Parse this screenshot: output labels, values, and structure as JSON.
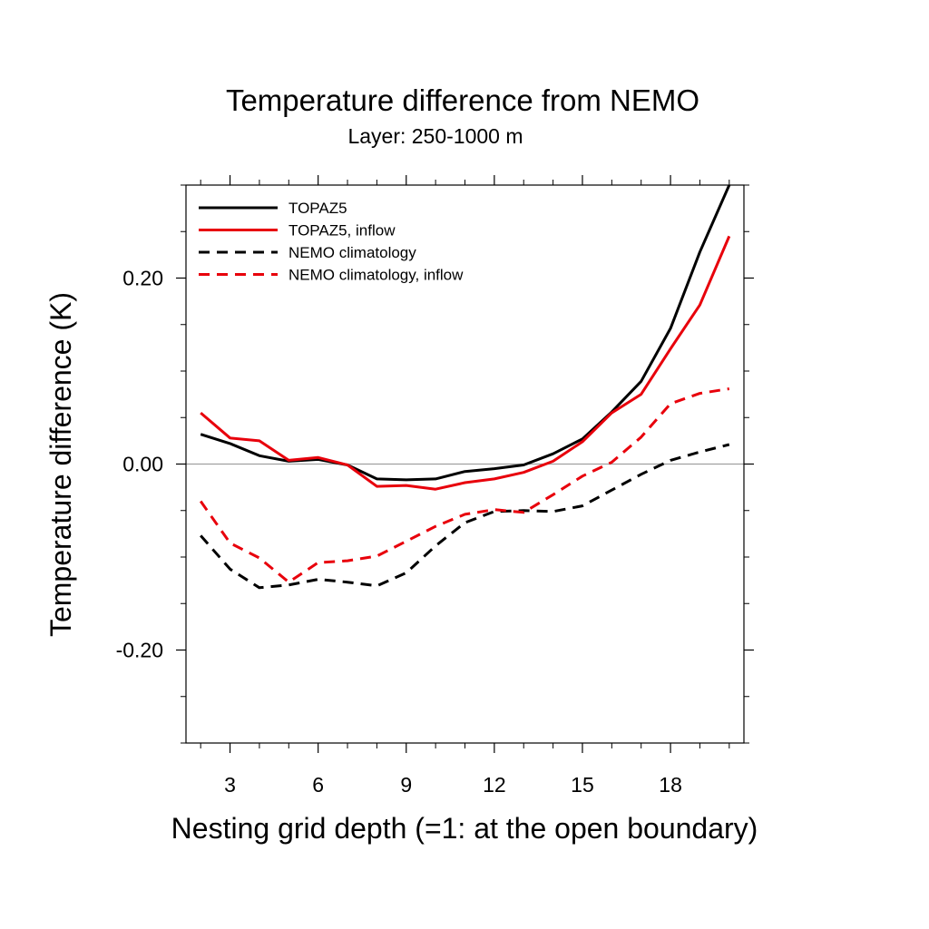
{
  "chart_data": {
    "type": "line",
    "title": "Temperature difference from NEMO",
    "subtitle": "Layer: 250-1000 m",
    "xlabel": "Nesting grid depth (=1: at the open boundary)",
    "ylabel": "Temperature difference (K)",
    "xlim": [
      1.5,
      20.5
    ],
    "ylim": [
      -0.3,
      0.3
    ],
    "x_major_ticks": [
      3,
      6,
      9,
      12,
      15,
      18
    ],
    "x_tick_labels": [
      "3",
      "6",
      "9",
      "12",
      "15",
      "18"
    ],
    "y_major_ticks": [
      -0.2,
      0.0,
      0.2
    ],
    "y_tick_labels": [
      "-0.20",
      "0.00",
      "0.20"
    ],
    "reference_line_y": 0,
    "legend_position": "top-left",
    "x": [
      2,
      3,
      4,
      5,
      6,
      7,
      8,
      9,
      10,
      11,
      12,
      13,
      14,
      15,
      16,
      17,
      18,
      19,
      20
    ],
    "series": [
      {
        "name": "TOPAZ5",
        "color": "#000000",
        "dash": "solid",
        "values": [
          0.032,
          0.022,
          0.009,
          0.003,
          0.005,
          -0.001,
          -0.016,
          -0.017,
          -0.016,
          -0.008,
          -0.005,
          -0.001,
          0.011,
          0.027,
          0.056,
          0.089,
          0.146,
          0.228,
          0.3
        ]
      },
      {
        "name": "TOPAZ5, inflow",
        "color": "#e8000b",
        "dash": "solid",
        "values": [
          0.055,
          0.028,
          0.025,
          0.004,
          0.007,
          -0.001,
          -0.024,
          -0.023,
          -0.027,
          -0.02,
          -0.016,
          -0.009,
          0.003,
          0.024,
          0.055,
          0.075,
          0.124,
          0.171,
          0.245
        ]
      },
      {
        "name": "NEMO climatology",
        "color": "#000000",
        "dash": "dashed",
        "values": [
          -0.077,
          -0.113,
          -0.133,
          -0.13,
          -0.124,
          -0.127,
          -0.131,
          -0.117,
          -0.088,
          -0.063,
          -0.051,
          -0.05,
          -0.051,
          -0.045,
          -0.028,
          -0.011,
          0.004,
          0.013,
          0.021
        ]
      },
      {
        "name": "NEMO climatology, inflow",
        "color": "#e8000b",
        "dash": "dashed",
        "values": [
          -0.04,
          -0.085,
          -0.101,
          -0.127,
          -0.106,
          -0.104,
          -0.099,
          -0.083,
          -0.067,
          -0.054,
          -0.049,
          -0.052,
          -0.033,
          -0.013,
          0.002,
          0.029,
          0.065,
          0.076,
          0.081
        ]
      }
    ]
  }
}
